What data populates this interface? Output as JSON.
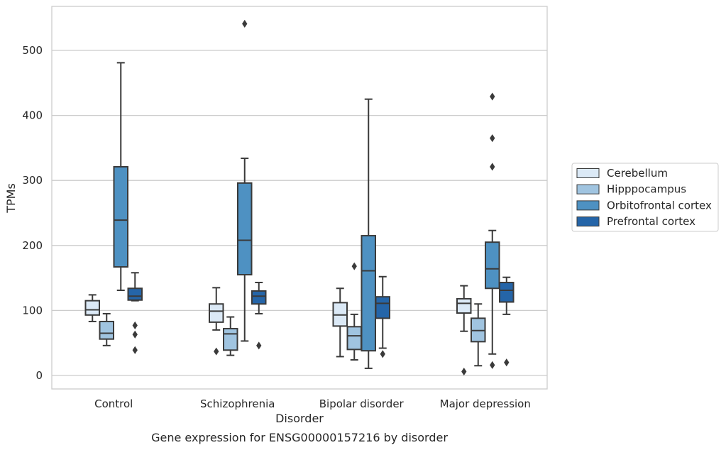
{
  "chart_data": {
    "type": "box",
    "categories": [
      "Control",
      "Schizophrenia",
      "Bipolar disorder",
      "Major depression"
    ],
    "xlabel": "Disorder",
    "ylabel": "TPMs",
    "caption": "Gene expression for ENSG00000157216 by disorder",
    "ylim": [
      -20,
      570
    ],
    "yticks": [
      0,
      100,
      200,
      300,
      400,
      500
    ],
    "grid": "horizontal",
    "legend_position": "right",
    "series": [
      {
        "name": "Cerebellum",
        "color": "#dbe9f6",
        "boxes": [
          {
            "whisker_low": 83,
            "q1": 93,
            "median": 101,
            "q3": 115,
            "whisker_high": 124,
            "outliers": []
          },
          {
            "whisker_low": 70,
            "q1": 82,
            "median": 99,
            "q3": 110,
            "whisker_high": 135,
            "outliers": [
              37
            ]
          },
          {
            "whisker_low": 29,
            "q1": 76,
            "median": 93,
            "q3": 112,
            "whisker_high": 134,
            "outliers": []
          },
          {
            "whisker_low": 68,
            "q1": 96,
            "median": 111,
            "q3": 118,
            "whisker_high": 138,
            "outliers": [
              6
            ]
          }
        ]
      },
      {
        "name": "Hipppocampus",
        "color": "#a0c4e0",
        "boxes": [
          {
            "whisker_low": 46,
            "q1": 56,
            "median": 65,
            "q3": 83,
            "whisker_high": 95,
            "outliers": []
          },
          {
            "whisker_low": 31,
            "q1": 39,
            "median": 64,
            "q3": 72,
            "whisker_high": 90,
            "outliers": []
          },
          {
            "whisker_low": 24,
            "q1": 40,
            "median": 61,
            "q3": 75,
            "whisker_high": 94,
            "outliers": [
              168
            ]
          },
          {
            "whisker_low": 15,
            "q1": 52,
            "median": 69,
            "q3": 88,
            "whisker_high": 110,
            "outliers": []
          }
        ]
      },
      {
        "name": "Orbitofrontal cortex",
        "color": "#4e91c2",
        "boxes": [
          {
            "whisker_low": 131,
            "q1": 167,
            "median": 239,
            "q3": 321,
            "whisker_high": 481,
            "outliers": []
          },
          {
            "whisker_low": 53,
            "q1": 155,
            "median": 208,
            "q3": 296,
            "whisker_high": 334,
            "outliers": [
              541
            ]
          },
          {
            "whisker_low": 11,
            "q1": 38,
            "median": 161,
            "q3": 215,
            "whisker_high": 425,
            "outliers": []
          },
          {
            "whisker_low": 33,
            "q1": 134,
            "median": 164,
            "q3": 205,
            "whisker_high": 223,
            "outliers": [
              429,
              365,
              321,
              16
            ]
          }
        ]
      },
      {
        "name": "Prefrontal cortex",
        "color": "#2565a8",
        "boxes": [
          {
            "whisker_low": 115,
            "q1": 116,
            "median": 122,
            "q3": 134,
            "whisker_high": 158,
            "outliers": [
              77,
              63,
              39
            ]
          },
          {
            "whisker_low": 95,
            "q1": 110,
            "median": 122,
            "q3": 130,
            "whisker_high": 143,
            "outliers": [
              46
            ]
          },
          {
            "whisker_low": 42,
            "q1": 88,
            "median": 111,
            "q3": 121,
            "whisker_high": 152,
            "outliers": [
              33
            ]
          },
          {
            "whisker_low": 94,
            "q1": 113,
            "median": 131,
            "q3": 143,
            "whisker_high": 151,
            "outliers": [
              20
            ]
          }
        ]
      }
    ]
  }
}
